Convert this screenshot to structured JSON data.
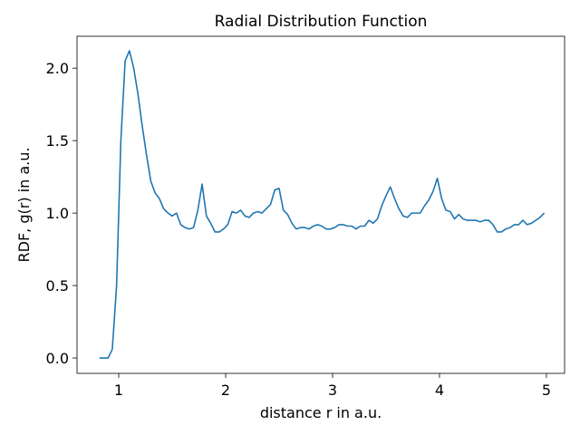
{
  "chart_data": {
    "type": "line",
    "title": "Radial Distribution Function",
    "xlabel": "distance r in a.u.",
    "ylabel": "RDF, g(r) in a.u.",
    "color": "#1f77b4",
    "x": [
      0.82,
      0.86,
      0.9,
      0.94,
      0.98,
      1.02,
      1.06,
      1.1,
      1.14,
      1.18,
      1.22,
      1.26,
      1.3,
      1.34,
      1.38,
      1.42,
      1.46,
      1.5,
      1.54,
      1.58,
      1.62,
      1.66,
      1.7,
      1.74,
      1.78,
      1.82,
      1.86,
      1.9,
      1.94,
      1.98,
      2.02,
      2.06,
      2.1,
      2.14,
      2.18,
      2.22,
      2.26,
      2.3,
      2.34,
      2.38,
      2.42,
      2.46,
      2.5,
      2.54,
      2.58,
      2.62,
      2.66,
      2.7,
      2.74,
      2.78,
      2.82,
      2.86,
      2.9,
      2.94,
      2.98,
      3.02,
      3.06,
      3.1,
      3.14,
      3.18,
      3.22,
      3.26,
      3.3,
      3.34,
      3.38,
      3.42,
      3.46,
      3.5,
      3.54,
      3.58,
      3.62,
      3.66,
      3.7,
      3.74,
      3.78,
      3.82,
      3.86,
      3.9,
      3.94,
      3.98,
      4.02,
      4.06,
      4.1,
      4.14,
      4.18,
      4.22,
      4.26,
      4.3,
      4.34,
      4.38,
      4.42,
      4.46,
      4.5,
      4.54,
      4.58,
      4.62,
      4.66,
      4.7,
      4.74,
      4.78,
      4.82,
      4.86,
      4.9,
      4.94,
      4.98
    ],
    "values": [
      0,
      0,
      0,
      0.06,
      0.5,
      1.5,
      2.05,
      2.12,
      2.0,
      1.82,
      1.6,
      1.4,
      1.22,
      1.14,
      1.1,
      1.03,
      1.0,
      0.98,
      1.0,
      0.92,
      0.9,
      0.89,
      0.9,
      1.02,
      1.2,
      0.98,
      0.93,
      0.87,
      0.87,
      0.89,
      0.92,
      1.01,
      1.0,
      1.02,
      0.98,
      0.97,
      1.0,
      1.01,
      1.0,
      1.03,
      1.06,
      1.16,
      1.17,
      1.02,
      0.99,
      0.93,
      0.89,
      0.9,
      0.9,
      0.89,
      0.91,
      0.92,
      0.91,
      0.89,
      0.89,
      0.9,
      0.92,
      0.92,
      0.91,
      0.91,
      0.89,
      0.91,
      0.91,
      0.95,
      0.93,
      0.96,
      1.05,
      1.12,
      1.18,
      1.1,
      1.03,
      0.98,
      0.97,
      1.0,
      1.0,
      1.0,
      1.05,
      1.09,
      1.15,
      1.24,
      1.1,
      1.02,
      1.01,
      0.96,
      0.99,
      0.96,
      0.95,
      0.95,
      0.95,
      0.94,
      0.95,
      0.95,
      0.92,
      0.87,
      0.87,
      0.89,
      0.9,
      0.92,
      0.92,
      0.95,
      0.92,
      0.93,
      0.95,
      0.97,
      1.0
    ],
    "xlim": [
      0.61,
      5.17
    ],
    "ylim": [
      -0.106,
      2.22
    ],
    "xticks": [
      1,
      2,
      3,
      4,
      5
    ],
    "yticks": [
      {
        "value": 0,
        "label": "0.0"
      },
      {
        "value": 0.5,
        "label": "0.5"
      },
      {
        "value": 1,
        "label": "1.0"
      },
      {
        "value": 1.5,
        "label": "1.5"
      },
      {
        "value": 2,
        "label": "2.0"
      }
    ]
  }
}
